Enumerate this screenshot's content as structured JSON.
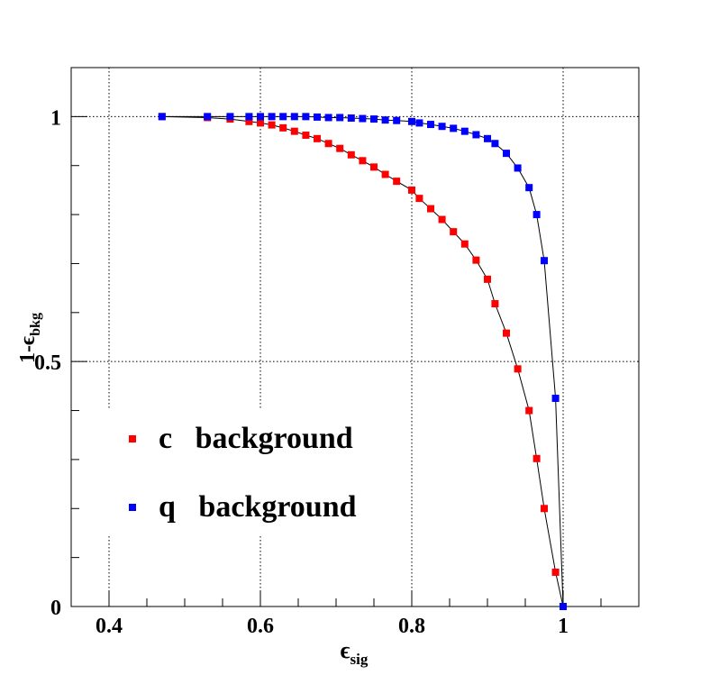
{
  "chart_data": {
    "type": "scatter",
    "xlabel": {
      "symbol": "ϵ",
      "sub": "sig"
    },
    "ylabel": {
      "prefix": "1-",
      "symbol": "ϵ",
      "sub": "bkg"
    },
    "xlim": [
      0.35,
      1.1
    ],
    "ylim": [
      0,
      1.1
    ],
    "xticks": [
      0.4,
      0.6,
      0.8,
      1
    ],
    "xtick_labels": [
      "0.4",
      "0.6",
      "0.8",
      "1"
    ],
    "yticks": [
      0,
      0.5,
      1
    ],
    "ytick_labels": [
      "0",
      "0.5",
      "1"
    ],
    "grid": true,
    "legend_position": "bottom-left",
    "series": [
      {
        "name": "c   background",
        "color": "#ff0000",
        "x": [
          0.47,
          0.53,
          0.56,
          0.585,
          0.6,
          0.615,
          0.63,
          0.645,
          0.66,
          0.675,
          0.69,
          0.705,
          0.72,
          0.735,
          0.75,
          0.765,
          0.78,
          0.8,
          0.81,
          0.825,
          0.84,
          0.855,
          0.87,
          0.885,
          0.9,
          0.91,
          0.925,
          0.94,
          0.955,
          0.965,
          0.975,
          0.99,
          1.0
        ],
        "y": [
          1.0,
          0.998,
          0.995,
          0.99,
          0.987,
          0.983,
          0.977,
          0.97,
          0.962,
          0.955,
          0.945,
          0.935,
          0.922,
          0.91,
          0.897,
          0.882,
          0.868,
          0.85,
          0.833,
          0.812,
          0.79,
          0.765,
          0.74,
          0.707,
          0.668,
          0.618,
          0.558,
          0.485,
          0.4,
          0.302,
          0.2,
          0.07,
          0.0
        ]
      },
      {
        "name": "q   background",
        "color": "#0000ff",
        "x": [
          0.47,
          0.53,
          0.56,
          0.585,
          0.6,
          0.615,
          0.63,
          0.645,
          0.66,
          0.675,
          0.69,
          0.705,
          0.72,
          0.735,
          0.75,
          0.765,
          0.78,
          0.8,
          0.81,
          0.825,
          0.84,
          0.855,
          0.87,
          0.885,
          0.9,
          0.91,
          0.925,
          0.94,
          0.955,
          0.965,
          0.975,
          0.99,
          1.0
        ],
        "y": [
          1.0,
          1.0,
          1.0,
          1.0,
          1.0,
          1.0,
          1.0,
          1.0,
          1.0,
          0.999,
          0.998,
          0.998,
          0.997,
          0.996,
          0.995,
          0.993,
          0.992,
          0.99,
          0.987,
          0.984,
          0.98,
          0.976,
          0.97,
          0.963,
          0.955,
          0.945,
          0.925,
          0.895,
          0.855,
          0.8,
          0.706,
          0.425,
          0.0
        ]
      }
    ]
  }
}
